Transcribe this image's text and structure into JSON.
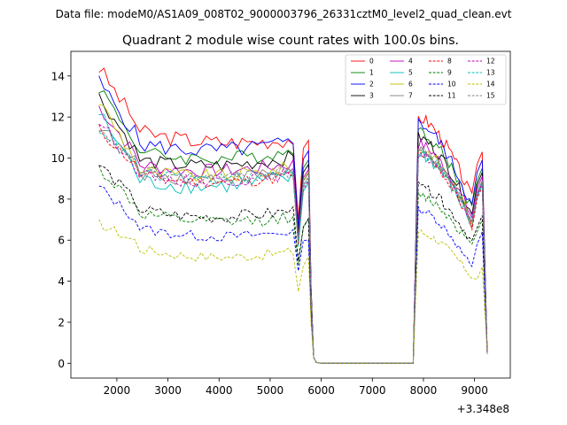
{
  "header": {
    "data_file": "Data file: modeM0/AS1A09_008T02_9000003796_26331cztM0_level2_quad_clean.evt"
  },
  "chart_data": {
    "type": "line",
    "title": "Quadrant 2 module wise count rates with 100.0s bins.",
    "xlabel": "",
    "ylabel": "",
    "x_offset_label": "+3.348e8",
    "xlim": [
      1100,
      9700
    ],
    "ylim": [
      -0.72,
      15.2
    ],
    "x_ticks": [
      2000,
      3000,
      4000,
      5000,
      6000,
      7000,
      8000,
      9000
    ],
    "y_ticks": [
      0,
      2,
      4,
      6,
      8,
      10,
      12,
      14
    ],
    "legend": {
      "position": "top-right",
      "columns": 4
    },
    "gap_segment": {
      "x_start": 6000,
      "x_end": 7800,
      "value": 0
    },
    "series": [
      {
        "name": "0",
        "color": "#ff0000",
        "dash": "solid",
        "first": 14.4,
        "level": 11.0,
        "end": 10.9,
        "noise": 0.4,
        "min_at_dip": 7.0,
        "second": 12.0,
        "min2": 8.0,
        "last": 10.3
      },
      {
        "name": "1",
        "color": "#008000",
        "dash": "solid",
        "first": 13.5,
        "level": 10.0,
        "end": 10.3,
        "noise": 0.35,
        "min_at_dip": 6.3,
        "second": 11.3,
        "min2": 7.5,
        "last": 9.5
      },
      {
        "name": "2",
        "color": "#0000ff",
        "dash": "solid",
        "first": 13.7,
        "level": 10.4,
        "end": 10.7,
        "noise": 0.4,
        "min_at_dip": 6.6,
        "second": 11.7,
        "min2": 7.6,
        "last": 9.9
      },
      {
        "name": "3",
        "color": "#000000",
        "dash": "solid",
        "first": 13.0,
        "level": 9.6,
        "end": 10.0,
        "noise": 0.35,
        "min_at_dip": 6.2,
        "second": 11.0,
        "min2": 7.2,
        "last": 9.3
      },
      {
        "name": "4",
        "color": "#bf00bf",
        "dash": "solid",
        "first": 12.5,
        "level": 9.4,
        "end": 9.7,
        "noise": 0.35,
        "min_at_dip": 6.0,
        "second": 10.7,
        "min2": 7.1,
        "last": 9.1
      },
      {
        "name": "5",
        "color": "#00bfbf",
        "dash": "solid",
        "first": 12.2,
        "level": 8.6,
        "end": 9.0,
        "noise": 0.4,
        "min_at_dip": 5.7,
        "second": 10.2,
        "min2": 6.7,
        "last": 8.7
      },
      {
        "name": "6",
        "color": "#bfbf00",
        "dash": "solid",
        "first": 12.8,
        "level": 9.1,
        "end": 9.5,
        "noise": 0.35,
        "min_at_dip": 5.9,
        "second": 10.5,
        "min2": 6.9,
        "last": 8.9
      },
      {
        "name": "7",
        "color": "#808080",
        "dash": "solid",
        "first": 11.6,
        "level": 9.0,
        "end": 9.4,
        "noise": 0.35,
        "min_at_dip": 5.8,
        "second": 10.3,
        "min2": 6.8,
        "last": 8.8
      },
      {
        "name": "8",
        "color": "#ff0000",
        "dash": "dashed",
        "first": 11.4,
        "level": 8.9,
        "end": 9.1,
        "noise": 0.3,
        "min_at_dip": 5.8,
        "second": 10.2,
        "min2": 6.7,
        "last": 8.6
      },
      {
        "name": "9",
        "color": "#008000",
        "dash": "dashed",
        "first": 9.5,
        "level": 7.0,
        "end": 7.1,
        "noise": 0.3,
        "min_at_dip": 4.8,
        "second": 8.2,
        "min2": 5.6,
        "last": 7.0
      },
      {
        "name": "10",
        "color": "#0000ff",
        "dash": "dashed",
        "first": 8.6,
        "level": 6.3,
        "end": 6.4,
        "noise": 0.25,
        "min_at_dip": 4.5,
        "second": 7.5,
        "min2": 4.6,
        "last": 6.4
      },
      {
        "name": "11",
        "color": "#000000",
        "dash": "dashed",
        "first": 9.7,
        "level": 7.2,
        "end": 7.4,
        "noise": 0.3,
        "min_at_dip": 5.0,
        "second": 8.6,
        "min2": 5.9,
        "last": 7.2
      },
      {
        "name": "12",
        "color": "#bf00bf",
        "dash": "dashed",
        "first": 11.8,
        "level": 8.9,
        "end": 9.2,
        "noise": 0.3,
        "min_at_dip": 5.9,
        "second": 10.2,
        "min2": 6.9,
        "last": 8.8
      },
      {
        "name": "13",
        "color": "#00bfbf",
        "dash": "dashed",
        "first": 11.5,
        "level": 9.0,
        "end": 9.3,
        "noise": 0.3,
        "min_at_dip": 5.9,
        "second": 10.3,
        "min2": 7.0,
        "last": 8.9
      },
      {
        "name": "14",
        "color": "#bfbf00",
        "dash": "dashed",
        "first": 6.8,
        "level": 5.3,
        "end": 5.4,
        "noise": 0.25,
        "min_at_dip": 3.5,
        "second": 6.4,
        "min2": 4.2,
        "last": 4.7
      },
      {
        "name": "15",
        "color": "#808080",
        "dash": "dashed",
        "first": 11.2,
        "level": 9.1,
        "end": 9.3,
        "noise": 0.3,
        "min_at_dip": 5.9,
        "second": 10.4,
        "min2": 7.0,
        "last": 8.9
      }
    ]
  }
}
